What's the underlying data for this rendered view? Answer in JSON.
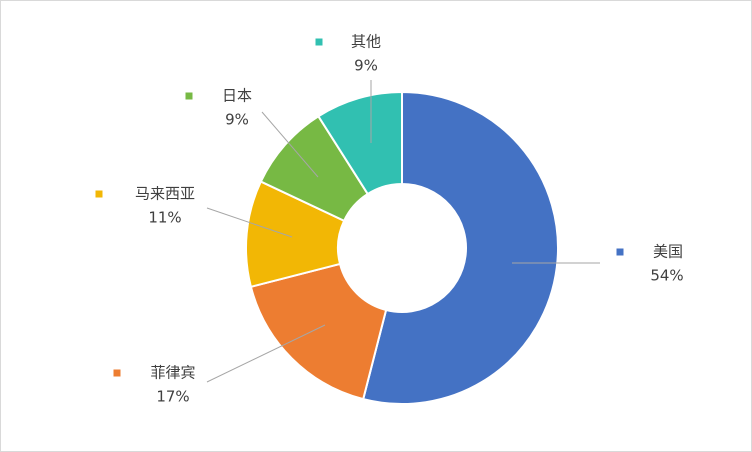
{
  "chart_data": {
    "type": "donut",
    "categories": [
      "美国",
      "菲律宾",
      "马来西亚",
      "日本",
      "其他"
    ],
    "values": [
      54,
      17,
      11,
      9,
      9
    ],
    "value_labels": [
      "54%",
      "17%",
      "11%",
      "9%",
      "9%"
    ],
    "colors": [
      "#4472c4",
      "#ed7d31",
      "#f2b705",
      "#77b944",
      "#31c0b1"
    ]
  }
}
